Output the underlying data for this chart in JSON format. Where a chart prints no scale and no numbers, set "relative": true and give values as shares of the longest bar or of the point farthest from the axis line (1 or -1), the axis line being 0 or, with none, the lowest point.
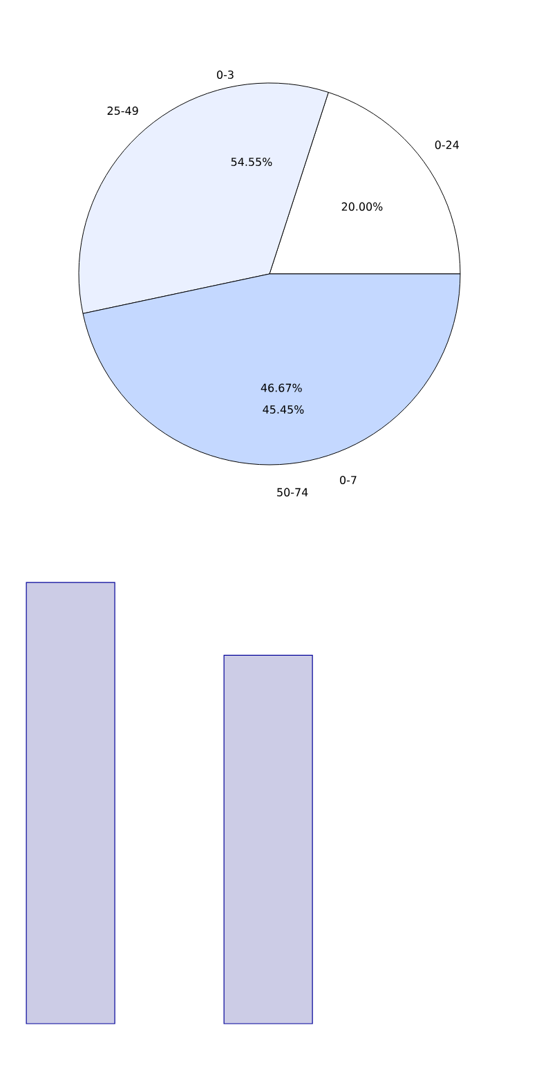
{
  "chart_data": [
    {
      "type": "pie",
      "categories": [
        "0-24",
        "25-49",
        "50-74"
      ],
      "values": [
        20.0,
        33.33,
        46.67
      ],
      "colors": [
        "#ffffff",
        "#eaf0ff",
        "#c4d8ff"
      ],
      "value_labels": [
        "20.00%",
        null,
        "46.67%"
      ],
      "annotations": [
        "0-3",
        "54.55%",
        "45.45%",
        "0-7"
      ]
    },
    {
      "type": "bar",
      "relative": true,
      "categories": [
        null,
        null
      ],
      "values": [
        1.0,
        0.835
      ],
      "color": "#ccccE6"
    }
  ]
}
